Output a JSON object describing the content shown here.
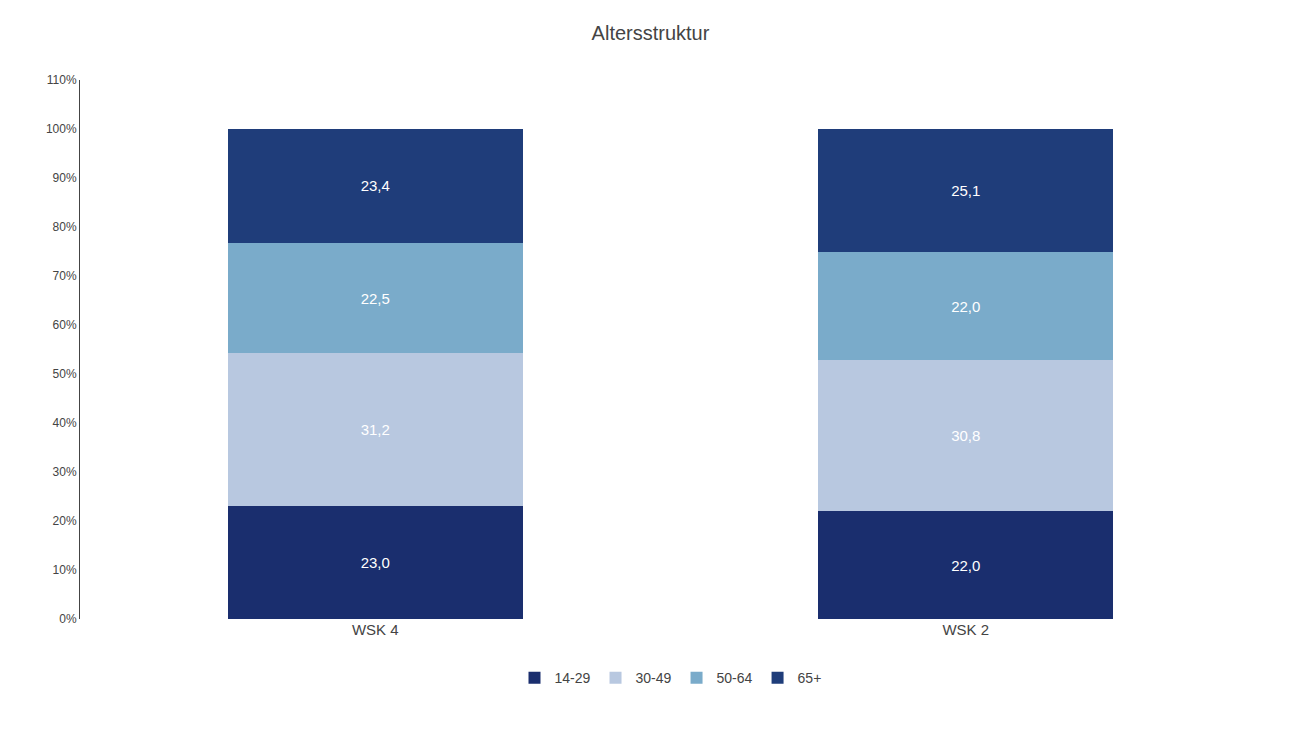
{
  "chart_data": {
    "type": "bar",
    "title": "Altersstruktur",
    "categories": [
      "WSK 4",
      "WSK 2"
    ],
    "series": [
      {
        "name": "14-29",
        "color": "#1a2e6e",
        "values": [
          23.0,
          22.0
        ],
        "value_labels": [
          "23,0",
          "22,0"
        ]
      },
      {
        "name": "30-49",
        "color": "#b8c8e0",
        "values": [
          31.2,
          30.8
        ],
        "value_labels": [
          "31,2",
          "30,8"
        ]
      },
      {
        "name": "50-64",
        "color": "#7aabca",
        "values": [
          22.5,
          22.0
        ],
        "value_labels": [
          "22,5",
          "22,0"
        ]
      },
      {
        "name": "65+",
        "color": "#1f3d7a",
        "values": [
          23.4,
          25.1
        ],
        "value_labels": [
          "23,4",
          "25,1"
        ]
      }
    ],
    "stacked": true,
    "data_labels": true,
    "ylim": [
      0,
      110
    ],
    "yticks": [
      {
        "value": 0,
        "label": "0%"
      },
      {
        "value": 10,
        "label": "10%"
      },
      {
        "value": 20,
        "label": "20%"
      },
      {
        "value": 30,
        "label": "30%"
      },
      {
        "value": 40,
        "label": "40%"
      },
      {
        "value": 50,
        "label": "50%"
      },
      {
        "value": 60,
        "label": "60%"
      },
      {
        "value": 70,
        "label": "70%"
      },
      {
        "value": 80,
        "label": "80%"
      },
      {
        "value": 90,
        "label": "90%"
      },
      {
        "value": 100,
        "label": "100%"
      },
      {
        "value": 110,
        "label": "110%"
      }
    ],
    "grid": false,
    "legend": "bottom"
  }
}
